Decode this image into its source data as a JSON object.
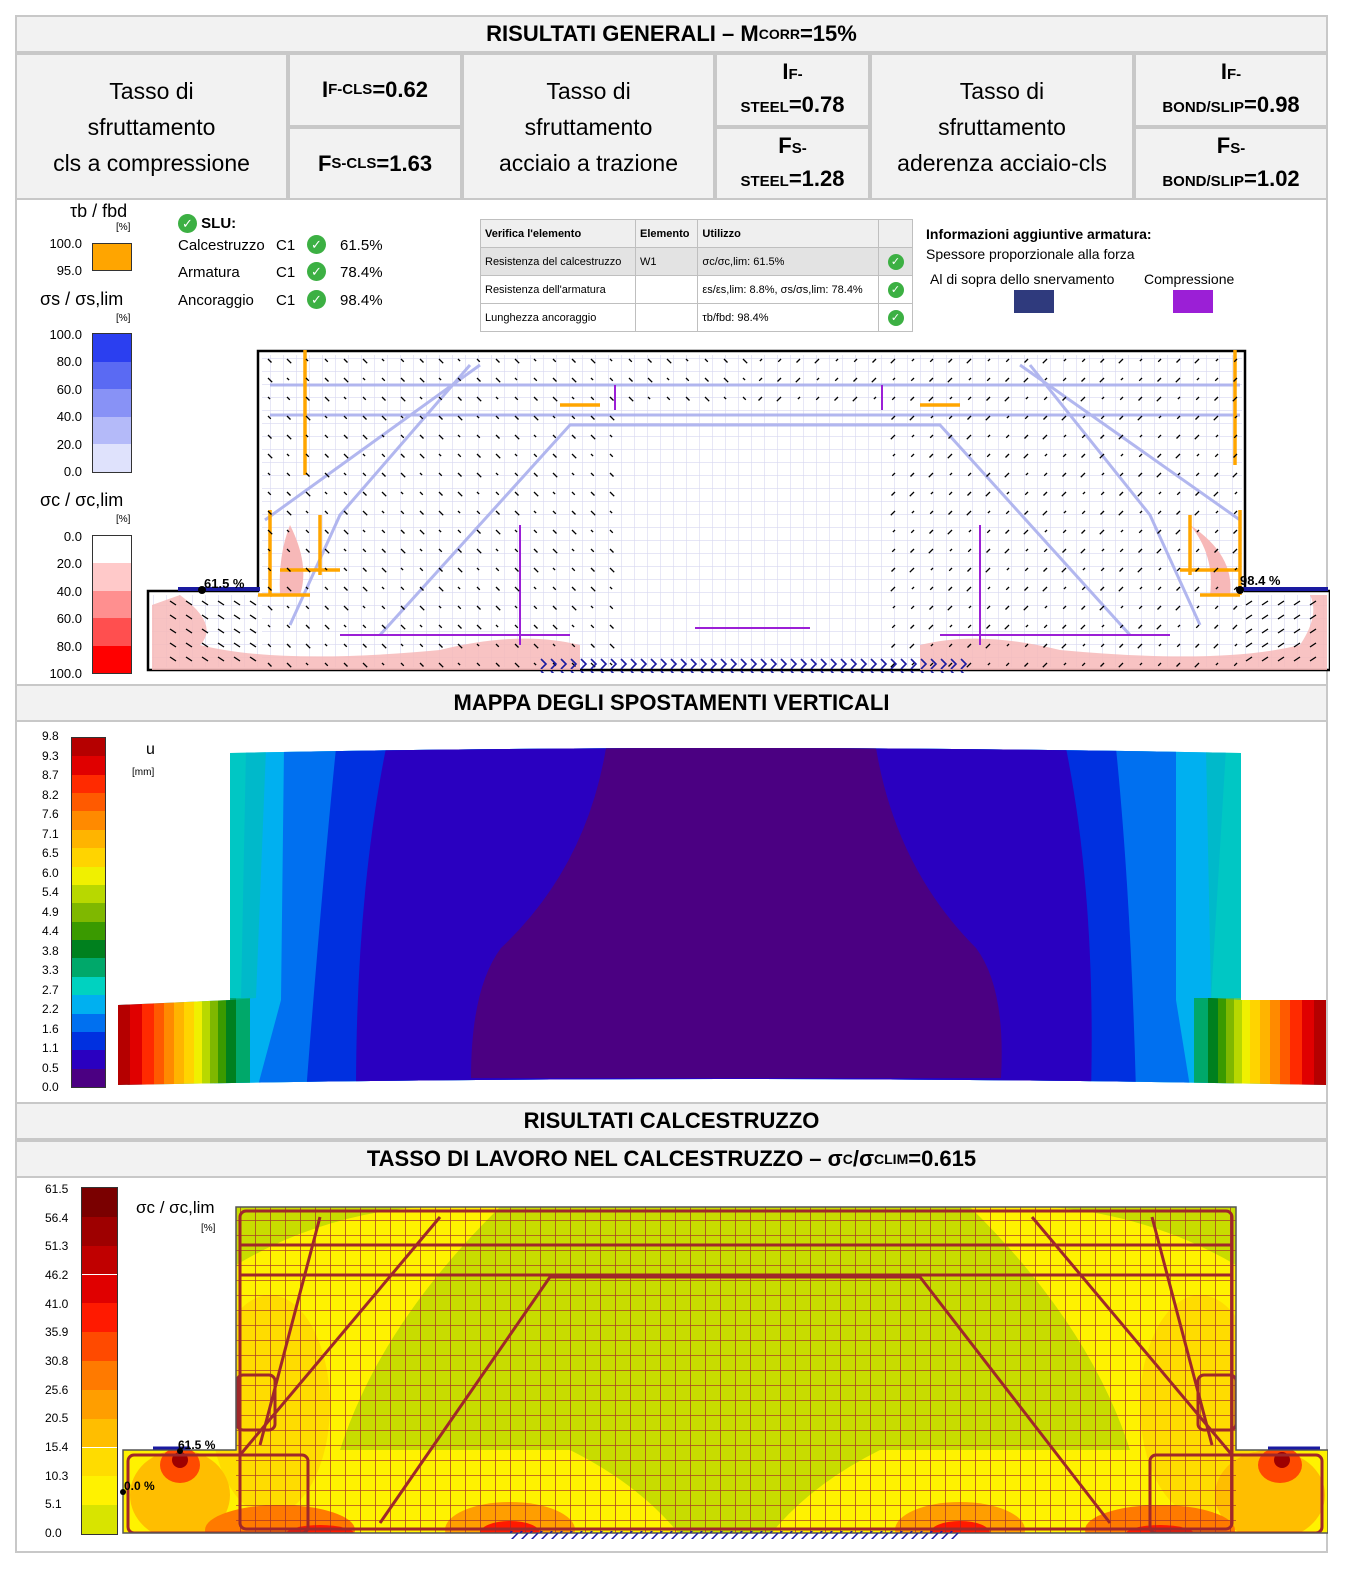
{
  "header1": {
    "text": "RISULTATI GENERALI – M",
    "sub": "CORR",
    "suffix": "=15%"
  },
  "summary": [
    {
      "desc": "Tasso di\nsfruttamento\ncls a compressione",
      "top": {
        "pre": "I",
        "sub": "F-CLS",
        "val": "=0.62"
      },
      "bot": {
        "pre": "F",
        "sub": "S-CLS",
        "val": "=1.63"
      }
    },
    {
      "desc": "Tasso di\nsfruttamento\nacciaio a trazione",
      "top": {
        "pre": "I",
        "sub": "F-",
        "sub2": "STEEL",
        "val": "=0.78"
      },
      "bot": {
        "pre": "F",
        "sub": "S-",
        "sub2": "STEEL",
        "val": "=1.28"
      }
    },
    {
      "desc": "Tasso di\nsfruttamento\naderenza acciaio-cls",
      "top": {
        "pre": "I",
        "sub": "F-",
        "sub2": "BOND/SLIP",
        "val": "=0.98"
      },
      "bot": {
        "pre": "F",
        "sub": "S-",
        "sub2": "BOND/SLIP",
        "val": "=1.02"
      }
    }
  ],
  "legend_bond": {
    "title": "τb / fbd",
    "unit": "[%]",
    "ticks": [
      "100.0",
      "95.0"
    ]
  },
  "legend_steel": {
    "title": "σs / σs,lim",
    "unit": "[%]",
    "ticks": [
      "100.0",
      "80.0",
      "60.0",
      "40.0",
      "20.0",
      "0.0"
    ],
    "colors": [
      "#2b3ff0",
      "#5a6af3",
      "#8892f6",
      "#b4baf9",
      "#dfe2fc"
    ]
  },
  "legend_conc": {
    "title": "σc / σc,lim",
    "unit": "[%]",
    "ticks": [
      "0.0",
      "20.0",
      "40.0",
      "60.0",
      "80.0",
      "100.0"
    ],
    "colors": [
      "#ffffff",
      "#ffc9c9",
      "#ff8f8f",
      "#ff4f4f",
      "#ff0000"
    ]
  },
  "slu": {
    "title": "SLU:",
    "rows": [
      {
        "label": "Calcestruzzo",
        "code": "C1",
        "value": "61.5%"
      },
      {
        "label": "Armatura",
        "code": "C1",
        "value": "78.4%"
      },
      {
        "label": "Ancoraggio",
        "code": "C1",
        "value": "98.4%"
      }
    ]
  },
  "verify_table": {
    "headers": [
      "Verifica l'elemento",
      "Elemento",
      "Utilizzo"
    ],
    "rows": [
      {
        "name": "Resistenza del calcestruzzo",
        "el": "W1",
        "use": "σc/σc,lim: 61.5%"
      },
      {
        "name": "Resistenza dell'armatura",
        "el": "",
        "use": "εs/εs,lim: 8.8%, σs/σs,lim: 78.4%"
      },
      {
        "name": "Lunghezza ancoraggio",
        "el": "",
        "use": "τb/fbd: 98.4%"
      }
    ]
  },
  "info": {
    "title": "Informazioni aggiuntive armatura:",
    "subtitle": "Spessore proporzionale alla forza",
    "yield_label": "Al di sopra dello snervamento",
    "comp_label": "Compressione",
    "yield_color": "#2f3a7d",
    "comp_color": "#9b1fd6"
  },
  "diagram1": {
    "label_left": "61.5 %",
    "label_right": "98.4 %"
  },
  "header2": {
    "text": "MAPPA DEGLI SPOSTAMENTI VERTICALI"
  },
  "legend_u": {
    "title": "u",
    "unit": "[mm]",
    "ticks": [
      "9.8",
      "9.3",
      "8.7",
      "8.2",
      "7.6",
      "7.1",
      "6.5",
      "6.0",
      "5.4",
      "4.9",
      "4.4",
      "3.8",
      "3.3",
      "2.7",
      "2.2",
      "1.6",
      "1.1",
      "0.5",
      "0.0"
    ],
    "colors": [
      "#b50000",
      "#e00000",
      "#ff2a00",
      "#ff5a00",
      "#ff8a00",
      "#ffb400",
      "#ffd400",
      "#f0f000",
      "#b8d800",
      "#7fb800",
      "#3a9a00",
      "#00801e",
      "#00a86a",
      "#00d2c0",
      "#00b0f0",
      "#0070f0",
      "#0030e0",
      "#2a00c0",
      "#4b0082"
    ]
  },
  "header3": {
    "text": "RISULTATI CALCESTRUZZO"
  },
  "header4": {
    "text": "TASSO DI LAVORO NEL CALCESTRUZZO – σ",
    "sub": "C",
    "mid": "/σ",
    "sub2": "CLIM",
    "suffix": "=0.615"
  },
  "legend_c": {
    "title": "σc / σc,lim",
    "unit": "[%]",
    "ticks": [
      "61.5",
      "56.4",
      "51.3",
      "46.2",
      "41.0",
      "35.9",
      "30.8",
      "25.6",
      "20.5",
      "15.4",
      "10.3",
      "5.1",
      "0.0"
    ],
    "colors": [
      "#7a0000",
      "#9e0000",
      "#c00000",
      "#e00000",
      "#ff1a00",
      "#ff4a00",
      "#ff7a00",
      "#ff9e00",
      "#ffbe00",
      "#ffdc00",
      "#fff200",
      "#d8e400"
    ]
  },
  "diagram3": {
    "label_left": "61.5 %",
    "label_left2": "0.0 %"
  }
}
